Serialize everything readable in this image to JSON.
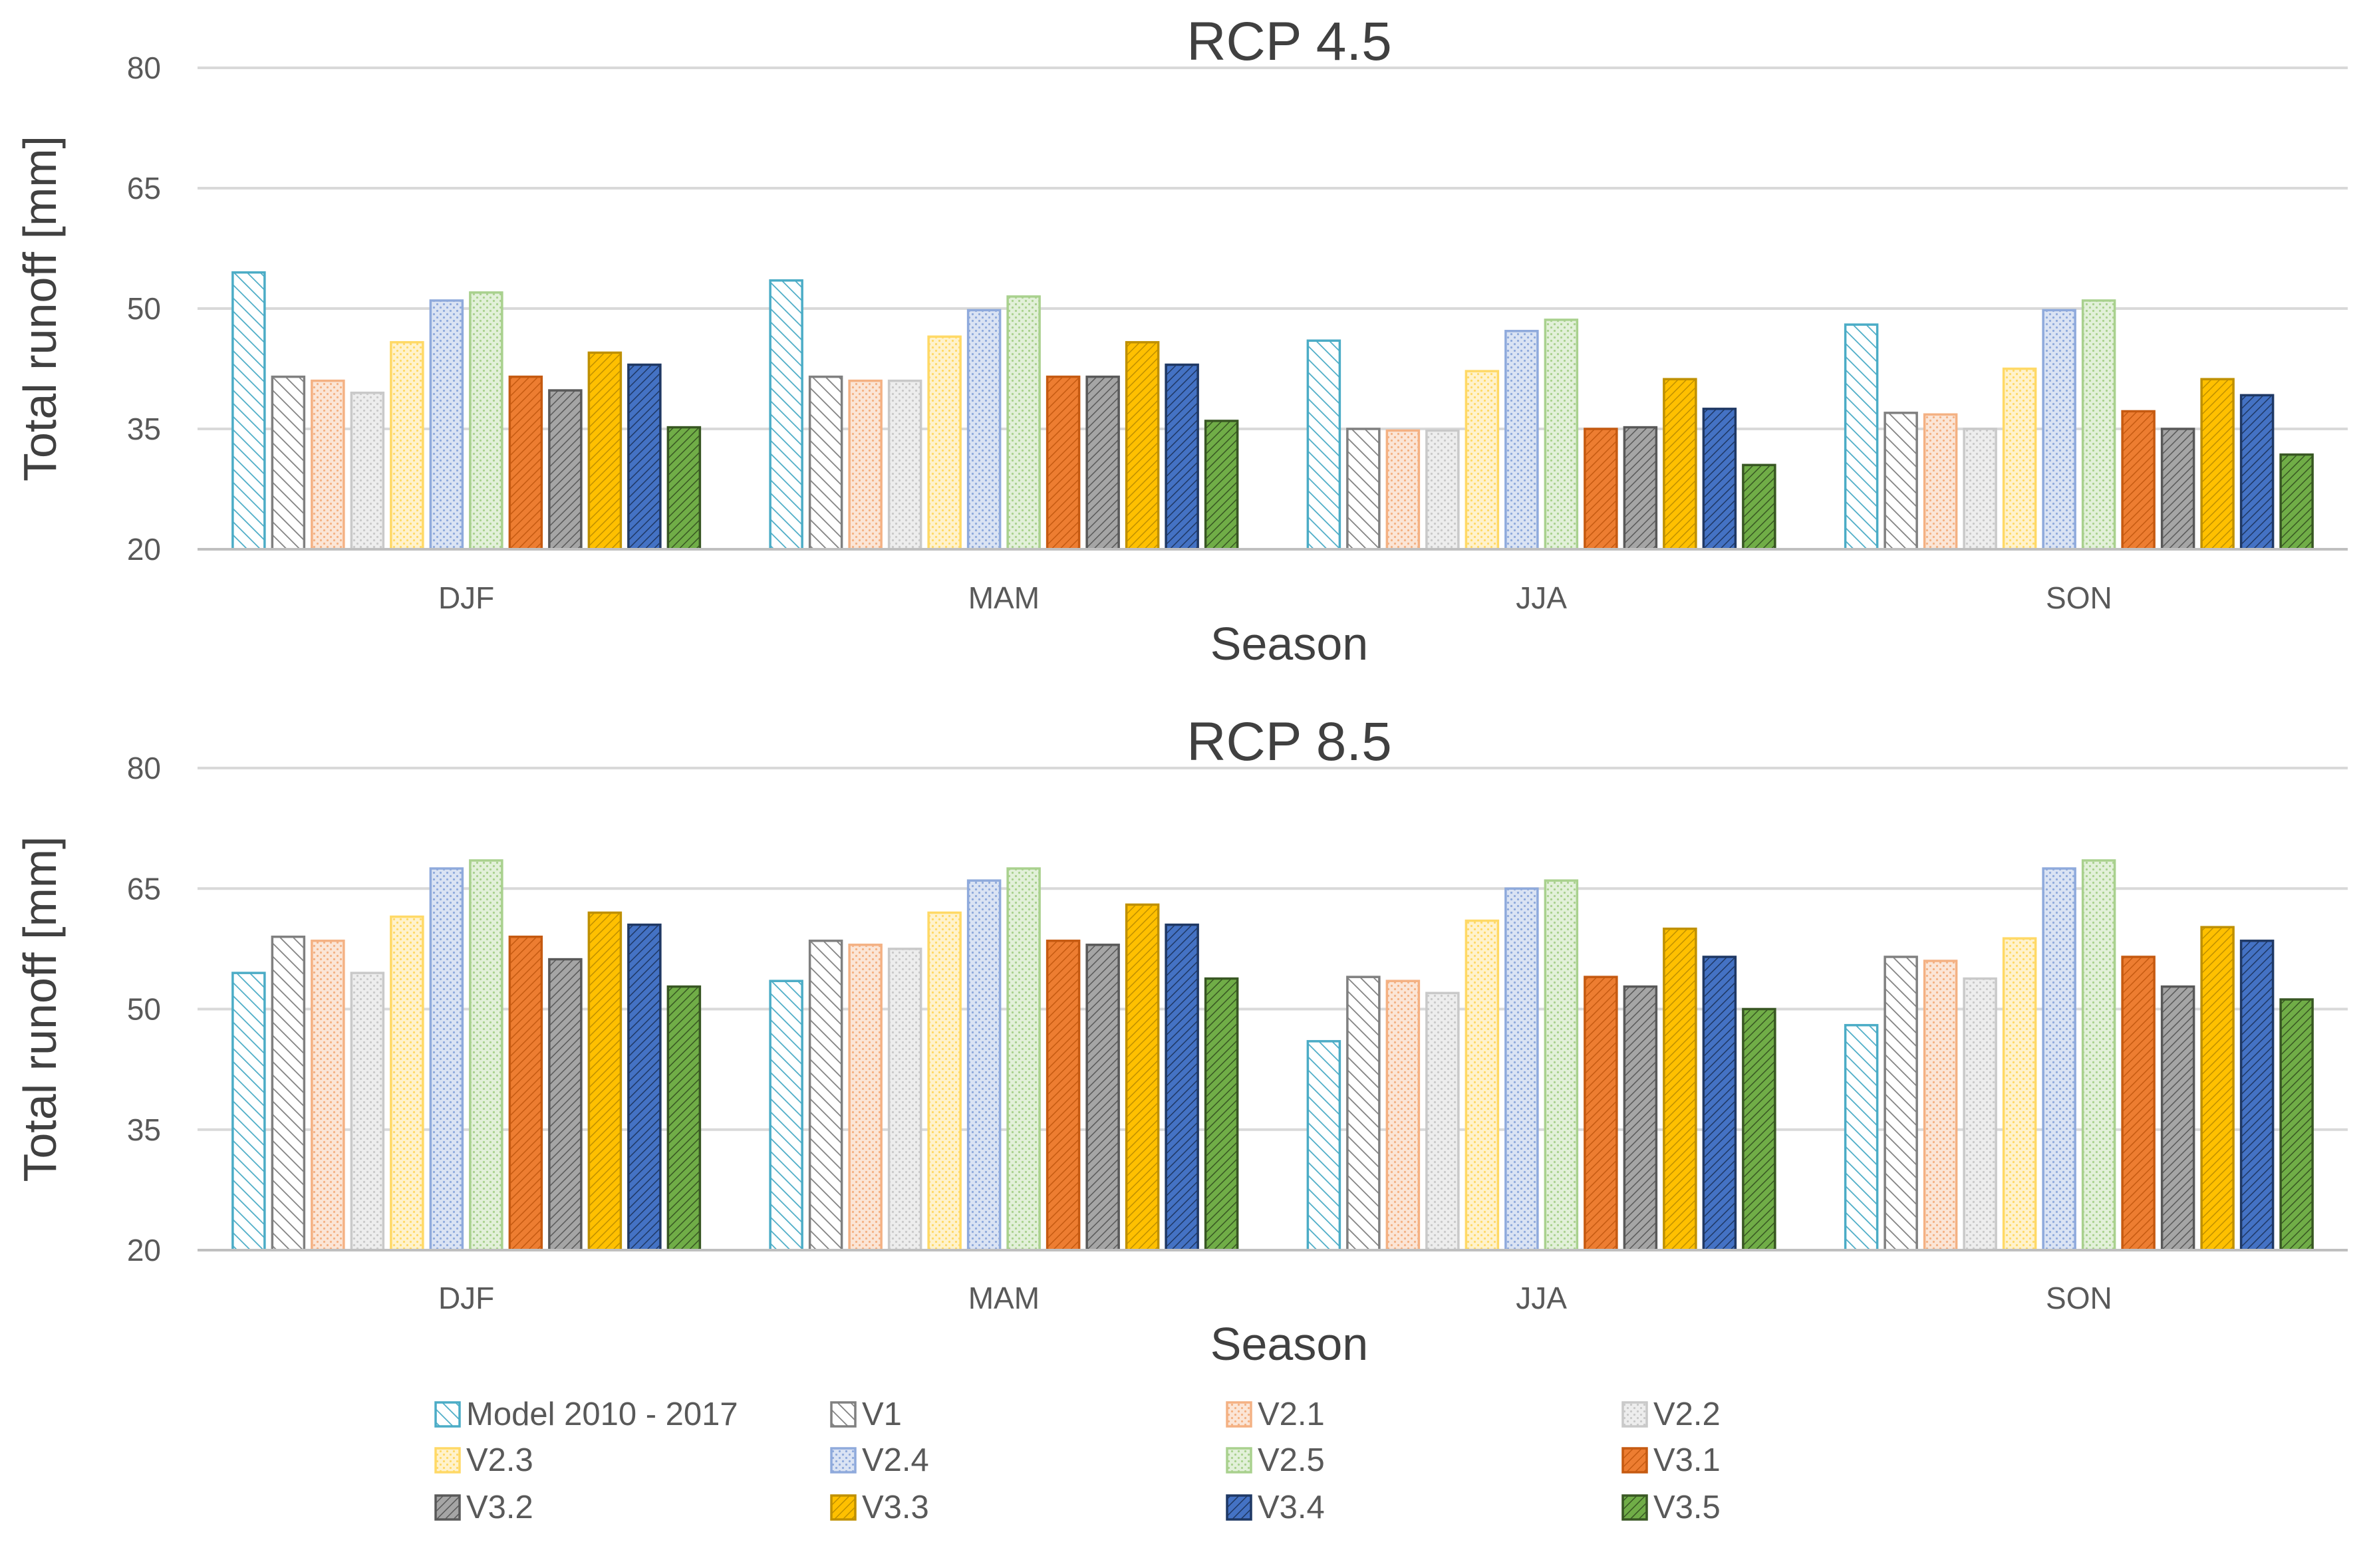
{
  "chart_data": [
    {
      "type": "bar",
      "title": "RCP 4.5",
      "xlabel": "Season",
      "ylabel": "Total runoff [mm]",
      "ylim": [
        20,
        80
      ],
      "yticks": [
        20,
        35,
        50,
        65,
        80
      ],
      "categories": [
        "DJF",
        "MAM",
        "JJA",
        "SON"
      ],
      "grid": true,
      "series": [
        {
          "name": "Model 2010 - 2017",
          "values": [
            54.5,
            53.5,
            46.0,
            48.0
          ]
        },
        {
          "name": "V1",
          "values": [
            41.5,
            41.5,
            35.0,
            37.0
          ]
        },
        {
          "name": "V2.1",
          "values": [
            41.0,
            41.0,
            34.8,
            36.8
          ]
        },
        {
          "name": "V2.2",
          "values": [
            39.5,
            41.0,
            34.8,
            35.0
          ]
        },
        {
          "name": "V2.3",
          "values": [
            45.8,
            46.5,
            42.2,
            42.5
          ]
        },
        {
          "name": "V2.4",
          "values": [
            51.0,
            49.8,
            47.2,
            49.8
          ]
        },
        {
          "name": "V2.5",
          "values": [
            52.0,
            51.5,
            48.6,
            51.0
          ]
        },
        {
          "name": "V3.1",
          "values": [
            41.5,
            41.5,
            35.0,
            37.2
          ]
        },
        {
          "name": "V3.2",
          "values": [
            39.8,
            41.5,
            35.2,
            35.0
          ]
        },
        {
          "name": "V3.3",
          "values": [
            44.5,
            45.8,
            41.2,
            41.2
          ]
        },
        {
          "name": "V3.4",
          "values": [
            43.0,
            43.0,
            37.5,
            39.2
          ]
        },
        {
          "name": "V3.5",
          "values": [
            35.2,
            36.0,
            30.5,
            31.8
          ]
        }
      ]
    },
    {
      "type": "bar",
      "title": "RCP 8.5",
      "xlabel": "Season",
      "ylabel": "Total runoff [mm]",
      "ylim": [
        20,
        80
      ],
      "yticks": [
        20,
        35,
        50,
        65,
        80
      ],
      "categories": [
        "DJF",
        "MAM",
        "JJA",
        "SON"
      ],
      "grid": true,
      "series": [
        {
          "name": "Model 2010 - 2017",
          "values": [
            54.5,
            53.5,
            46.0,
            48.0
          ]
        },
        {
          "name": "V1",
          "values": [
            59.0,
            58.5,
            54.0,
            56.5
          ]
        },
        {
          "name": "V2.1",
          "values": [
            58.5,
            58.0,
            53.5,
            56.0
          ]
        },
        {
          "name": "V2.2",
          "values": [
            54.5,
            57.5,
            52.0,
            53.8
          ]
        },
        {
          "name": "V2.3",
          "values": [
            61.5,
            62.0,
            61.0,
            58.8
          ]
        },
        {
          "name": "V2.4",
          "values": [
            67.5,
            66.0,
            65.0,
            67.5
          ]
        },
        {
          "name": "V2.5",
          "values": [
            68.5,
            67.5,
            66.0,
            68.5
          ]
        },
        {
          "name": "V3.1",
          "values": [
            59.0,
            58.5,
            54.0,
            56.5
          ]
        },
        {
          "name": "V3.2",
          "values": [
            56.2,
            58.0,
            52.8,
            52.8
          ]
        },
        {
          "name": "V3.3",
          "values": [
            62.0,
            63.0,
            60.0,
            60.2
          ]
        },
        {
          "name": "V3.4",
          "values": [
            60.5,
            60.5,
            56.5,
            58.5
          ]
        },
        {
          "name": "V3.5",
          "values": [
            52.8,
            53.8,
            50.0,
            51.2
          ]
        }
      ]
    }
  ],
  "legend": {
    "placement": "bottom",
    "columns": 4,
    "items": [
      {
        "name": "Model 2010 - 2017",
        "color": "#4bacc6",
        "fill": "#ffffff",
        "pattern": "diag-up"
      },
      {
        "name": "V1",
        "color": "#808080",
        "fill": "#ffffff",
        "pattern": "diag-up"
      },
      {
        "name": "V2.1",
        "color": "#f4b183",
        "fill": "#fbe5d6",
        "pattern": "dots"
      },
      {
        "name": "V2.2",
        "color": "#c9c9c9",
        "fill": "#ededed",
        "pattern": "dots"
      },
      {
        "name": "V2.3",
        "color": "#ffd966",
        "fill": "#fff2cc",
        "pattern": "dots"
      },
      {
        "name": "V2.4",
        "color": "#8faadc",
        "fill": "#dae3f3",
        "pattern": "dots"
      },
      {
        "name": "V2.5",
        "color": "#a9d18e",
        "fill": "#e2f0d9",
        "pattern": "dots"
      },
      {
        "name": "V3.1",
        "color": "#c55a11",
        "fill": "#ed7d31",
        "pattern": "diag-dense"
      },
      {
        "name": "V3.2",
        "color": "#595959",
        "fill": "#a5a5a5",
        "pattern": "diag-dense"
      },
      {
        "name": "V3.3",
        "color": "#bf9000",
        "fill": "#ffc000",
        "pattern": "diag-dense"
      },
      {
        "name": "V3.4",
        "color": "#1f3864",
        "fill": "#4472c4",
        "pattern": "diag-dense"
      },
      {
        "name": "V3.5",
        "color": "#385723",
        "fill": "#70ad47",
        "pattern": "diag-dense"
      }
    ]
  }
}
